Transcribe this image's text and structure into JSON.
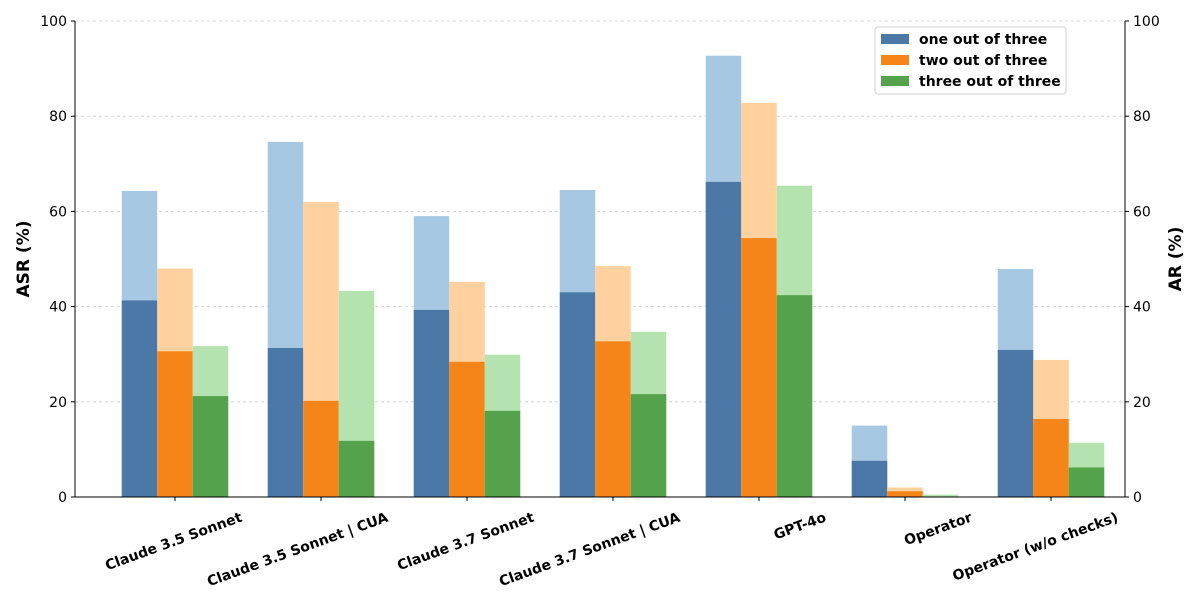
{
  "chart_data": {
    "type": "bar",
    "title": "",
    "ylabel": "ASR (%)",
    "ylabel_right": "AR (%)",
    "ylim": [
      0,
      100
    ],
    "yticks": [
      0,
      20,
      40,
      60,
      80,
      100
    ],
    "grid": true,
    "legend_position": "top-right",
    "categories": [
      "Claude 3.5 Sonnet",
      "Claude 3.5 Sonnet | CUA",
      "Claude 3.7 Sonnet",
      "Claude 3.7 Sonnet | CUA",
      "GPT-4o",
      "Operator",
      "Operator (w/o checks)"
    ],
    "series": [
      {
        "name": "one out of three",
        "color": "#4c78a8",
        "light_color": "#a6c8e2",
        "asr": [
          41.3,
          31.3,
          39.3,
          43.0,
          66.2,
          7.6,
          30.9
        ],
        "ar": [
          64.3,
          74.6,
          59.0,
          64.5,
          92.7,
          15.0,
          47.9
        ]
      },
      {
        "name": "two out of three",
        "color": "#f58518",
        "light_color": "#ffd19e",
        "asr": [
          30.6,
          20.2,
          28.4,
          32.7,
          54.4,
          1.2,
          16.4
        ],
        "ar": [
          48.0,
          62.0,
          45.2,
          48.5,
          82.8,
          2.0,
          28.8
        ]
      },
      {
        "name": "three out of three",
        "color": "#54a24b",
        "light_color": "#b5e3af",
        "asr": [
          21.2,
          11.8,
          18.1,
          21.6,
          42.4,
          0.0,
          6.2
        ],
        "ar": [
          31.7,
          43.3,
          29.9,
          34.7,
          65.4,
          0.5,
          11.4
        ]
      }
    ]
  }
}
